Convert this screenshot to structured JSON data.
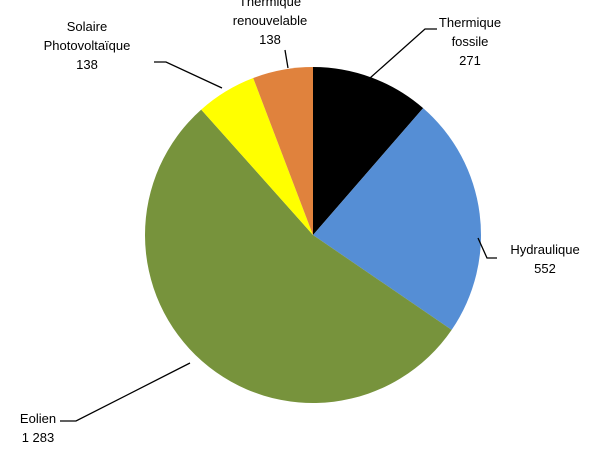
{
  "chart_data": {
    "type": "pie",
    "categories": [
      "Thermique fossile",
      "Hydraulique",
      "Eolien",
      "Solaire Photovoltaïque",
      "Thermique renouvelable"
    ],
    "values": [
      271,
      552,
      1283,
      138,
      138
    ],
    "value_labels": [
      "271",
      "552",
      "1 283",
      "138",
      "138"
    ],
    "colors": [
      "#000000",
      "#558ed5",
      "#77933c",
      "#ffff00",
      "#e0823d"
    ]
  }
}
